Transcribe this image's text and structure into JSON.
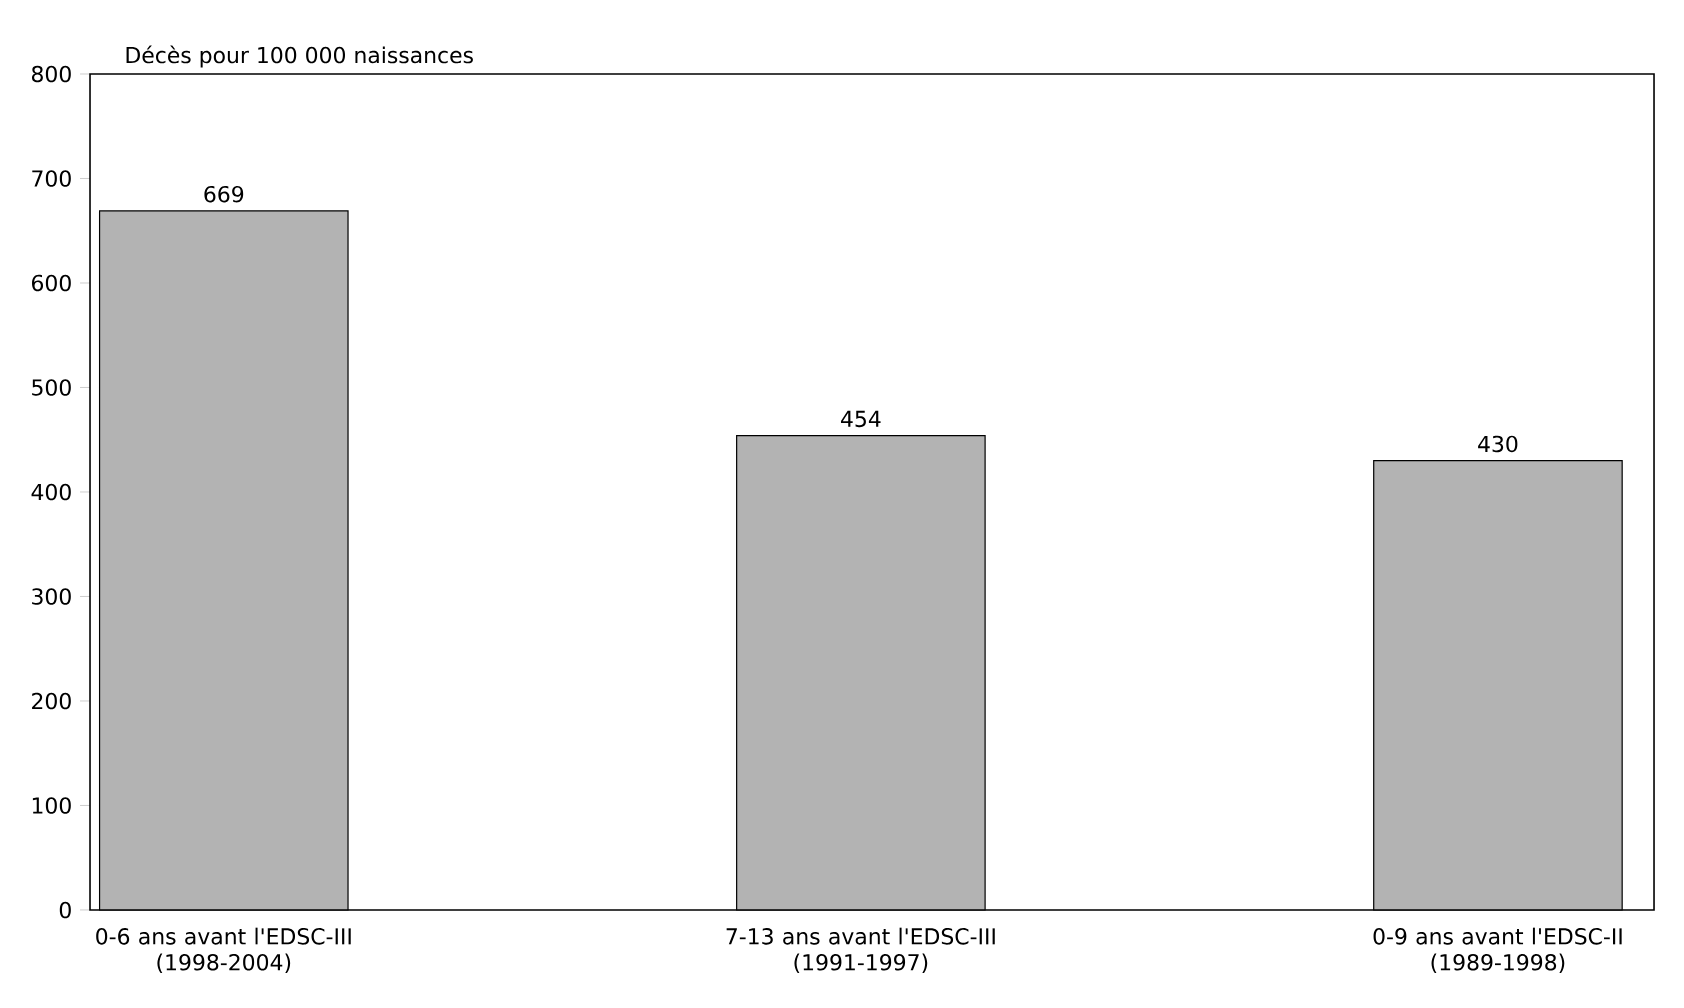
{
  "chart_data": {
    "type": "bar",
    "ylabel": "Décès pour 100 000 naissances",
    "categories": [
      "0-6 ans avant l'EDSC-III (1998-2004)",
      "7-13 ans avant l'EDSC-III (1991-1997)",
      "0-9 ans avant l'EDSC-II (1989-1998)"
    ],
    "values": [
      669,
      454,
      430
    ],
    "color": "#b3b3b3",
    "ylim": [
      0,
      800
    ],
    "yticks": [
      0,
      100,
      200,
      300,
      400,
      500,
      600,
      700,
      800
    ],
    "data_labels": true,
    "grid": false
  }
}
